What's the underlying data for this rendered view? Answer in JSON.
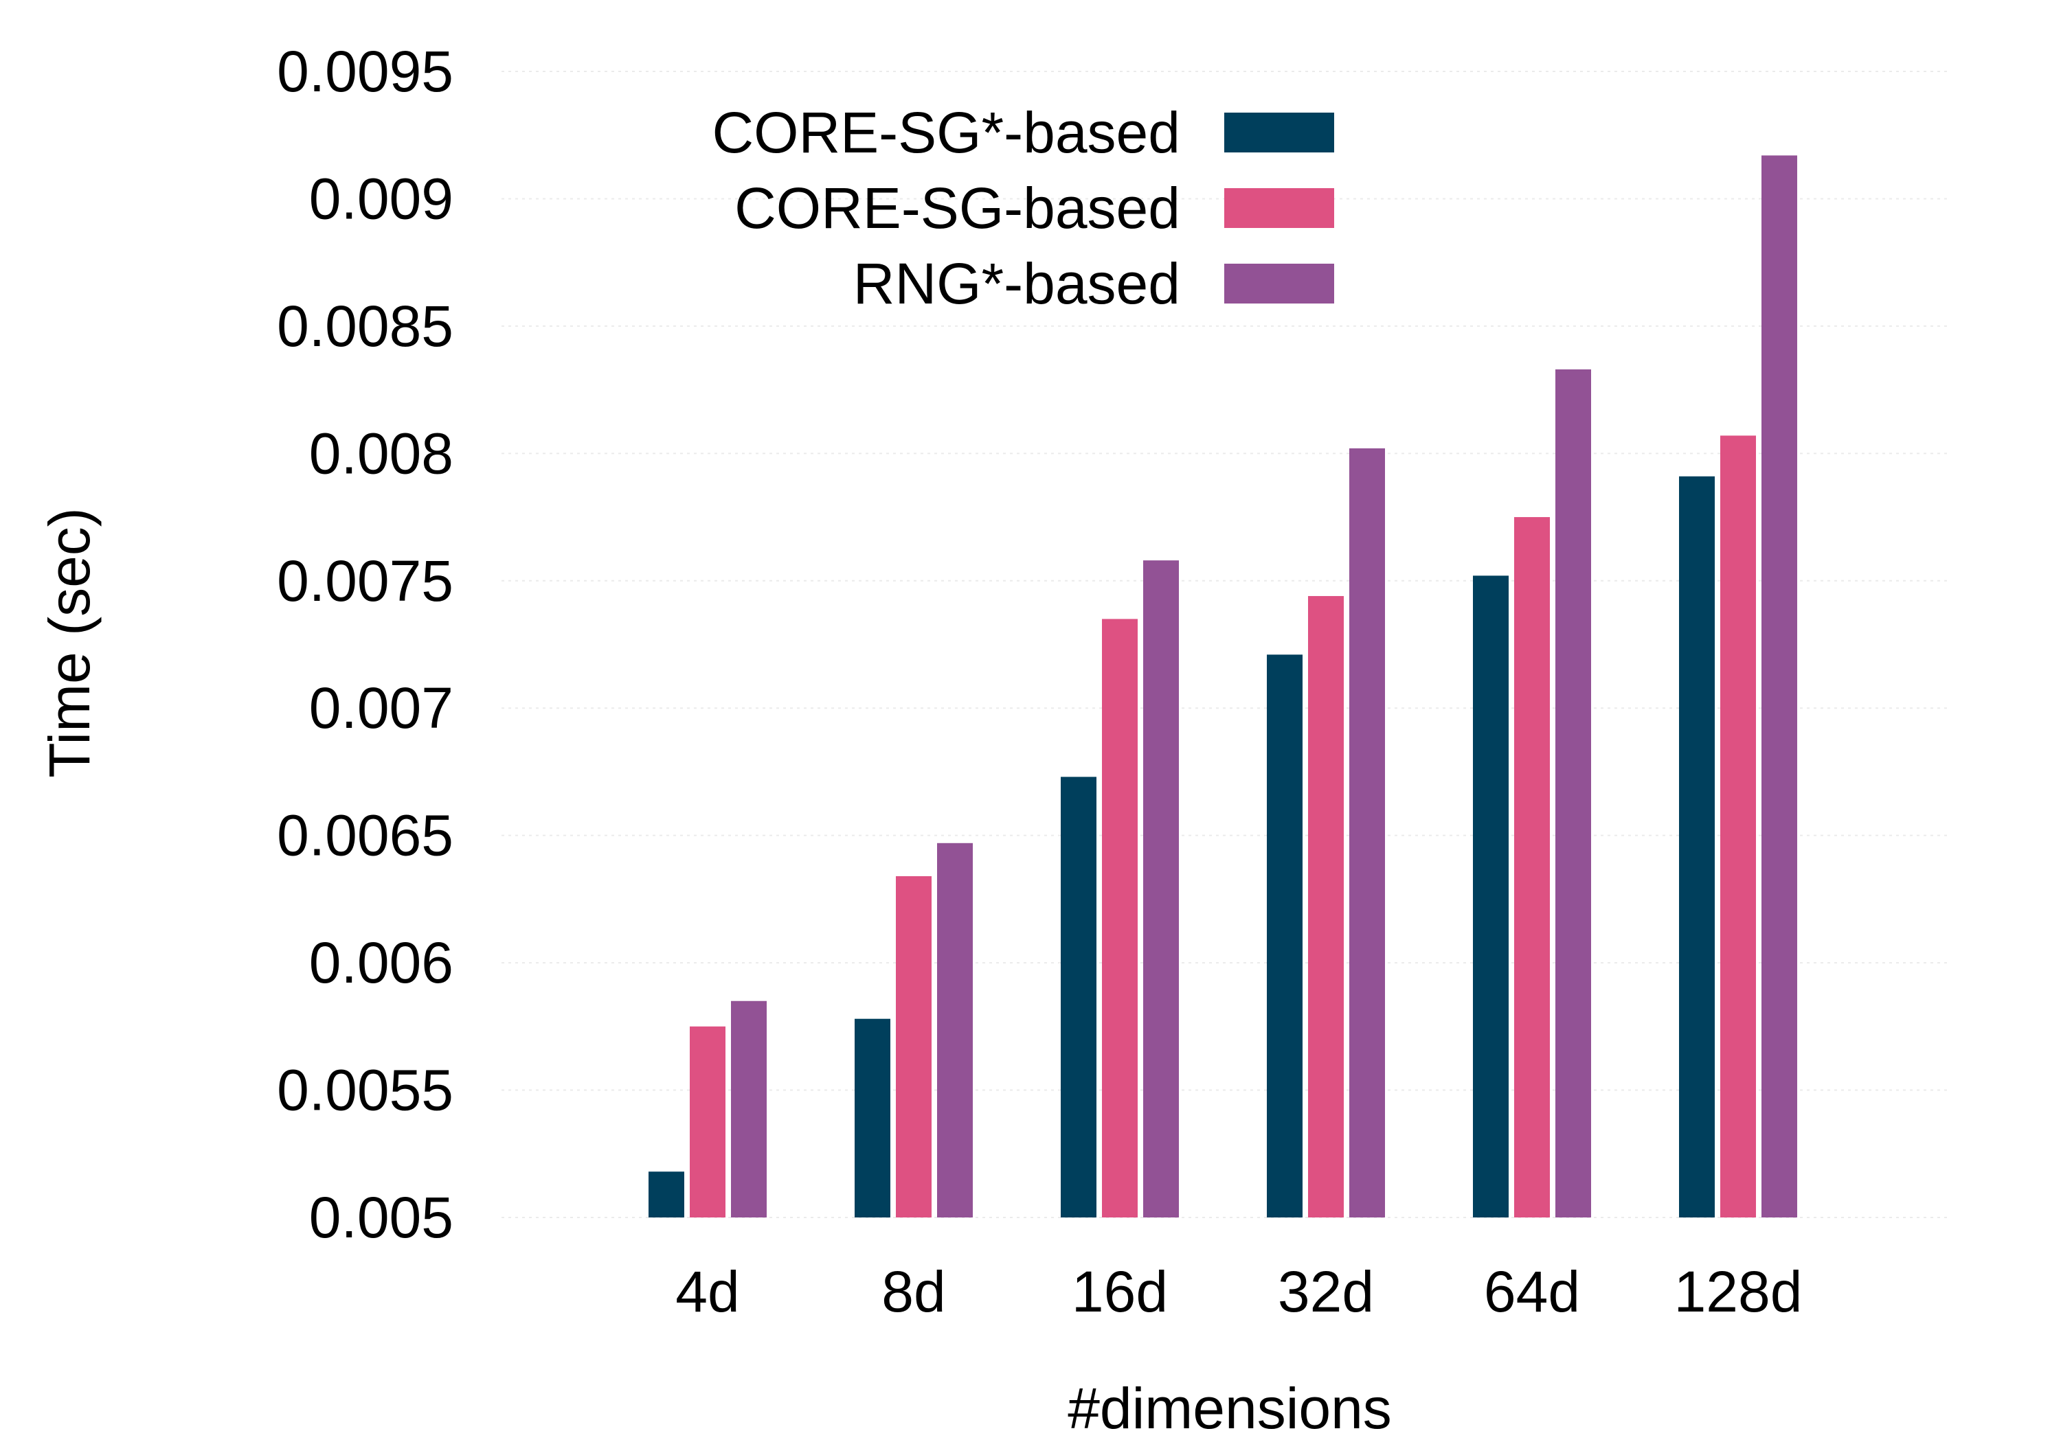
{
  "chart_data": {
    "type": "bar",
    "title": "",
    "xlabel": "#dimensions",
    "ylabel": "Time (sec)",
    "categories": [
      "4d",
      "8d",
      "16d",
      "32d",
      "64d",
      "128d"
    ],
    "series": [
      {
        "name": "CORE-SG*-based",
        "color": "#003f5c",
        "values": [
          0.00518,
          0.00578,
          0.00673,
          0.00721,
          0.00752,
          0.00791
        ]
      },
      {
        "name": "CORE-SG-based",
        "color": "#de5182",
        "values": [
          0.00575,
          0.00634,
          0.00735,
          0.00744,
          0.00775,
          0.00807
        ]
      },
      {
        "name": "RNG*-based",
        "color": "#925295",
        "values": [
          0.00585,
          0.00647,
          0.00758,
          0.00802,
          0.00833,
          0.00917
        ]
      }
    ],
    "ylim": [
      0.005,
      0.0095
    ],
    "yticks": [
      "0.005",
      "0.0055",
      "0.006",
      "0.0065",
      "0.007",
      "0.0075",
      "0.008",
      "0.0085",
      "0.009",
      "0.0095"
    ],
    "grid": true,
    "legend_position": "top-left"
  }
}
